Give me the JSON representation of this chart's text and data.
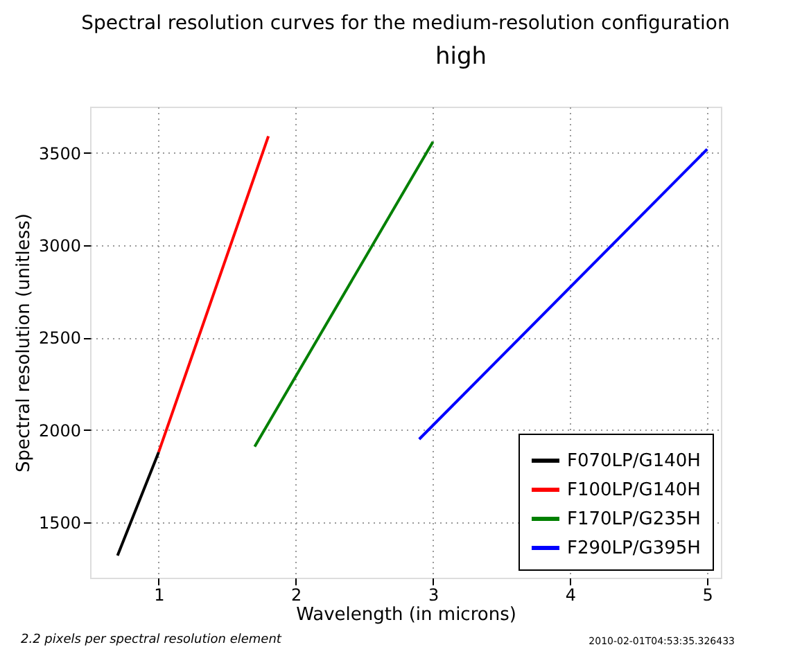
{
  "chart_data": {
    "type": "line",
    "title": "Spectral resolution curves for the medium-resolution configuration",
    "xlabel": "Wavelength (in microns)",
    "ylabel": "Spectral resolution (unitless)",
    "series": [
      {
        "name": "F070LP/G140H",
        "color": "#000000",
        "x": [
          0.7,
          1.0
        ],
        "values": [
          1320,
          1880
        ]
      },
      {
        "name": "F100LP/G140H",
        "color": "#ff0000",
        "x": [
          1.0,
          1.8
        ],
        "values": [
          1880,
          3590
        ]
      },
      {
        "name": "F170LP/G235H",
        "color": "#008000",
        "x": [
          1.7,
          3.0
        ],
        "values": [
          1910,
          3560
        ]
      },
      {
        "name": "F290LP/G395H",
        "color": "#0000ff",
        "x": [
          2.9,
          5.0
        ],
        "values": [
          1950,
          3520
        ]
      }
    ],
    "xlim": [
      0.5,
      5.1
    ],
    "xticks": [
      1,
      2,
      3,
      4,
      5
    ],
    "ylim": [
      1200,
      3750
    ],
    "yticks": [
      1500,
      2000,
      2500,
      3000,
      3500
    ],
    "grid": true,
    "legend": "bottom right",
    "line_style": "solid",
    "marker": "none",
    "annotations": [
      "high",
      "2.2 pixels per spectral resolution element",
      "2010-02-01T04:53:35.326433"
    ]
  }
}
